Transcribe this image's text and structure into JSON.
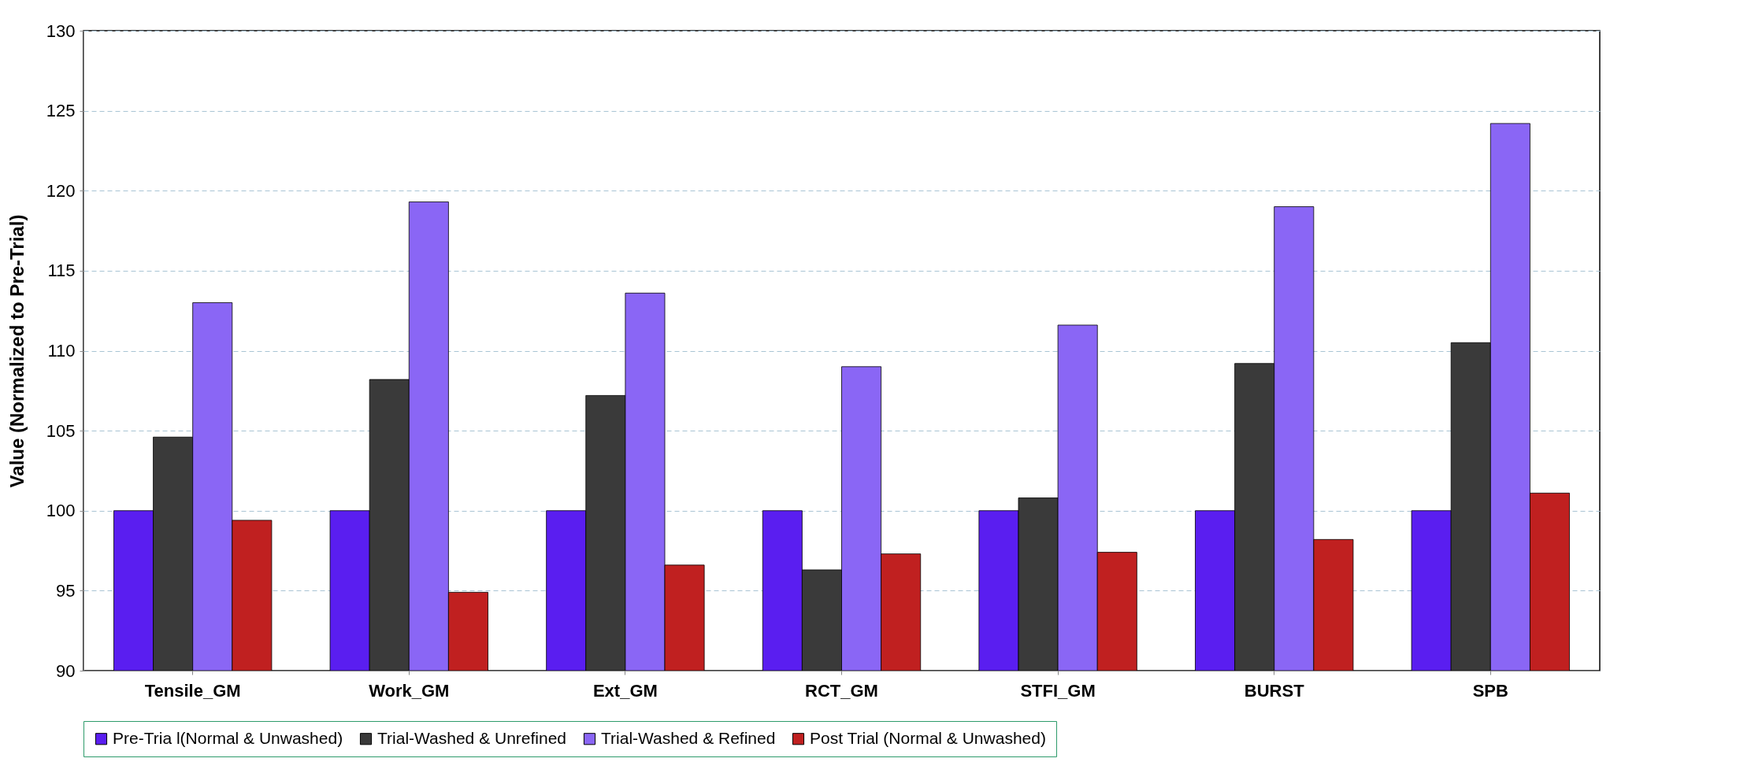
{
  "chart_data": {
    "type": "bar",
    "ylabel": "Value (Normalized to Pre-Trial)",
    "categories": [
      "Tensile_GM",
      "Work_GM",
      "Ext_GM",
      "RCT_GM",
      "STFI_GM",
      "BURST",
      "SPB"
    ],
    "series": [
      {
        "name": "Pre-Tria l(Normal & Unwashed)",
        "color": "#5a1ef0",
        "values": [
          100,
          100,
          100,
          100,
          100,
          100,
          100
        ]
      },
      {
        "name": "Trial-Washed & Unrefined",
        "color": "#3a3a3a",
        "values": [
          104.6,
          108.2,
          107.2,
          96.3,
          100.8,
          109.2,
          110.5
        ]
      },
      {
        "name": "Trial-Washed & Refined",
        "color": "#8a66f5",
        "values": [
          113,
          119.3,
          113.6,
          109,
          111.6,
          119,
          124.2
        ]
      },
      {
        "name": "Post Trial (Normal & Unwashed)",
        "color": "#c02020",
        "values": [
          99.4,
          94.9,
          96.6,
          97.3,
          97.4,
          98.2,
          101.1
        ]
      }
    ],
    "ylim": [
      90,
      130
    ],
    "yticks": [
      90,
      95,
      100,
      105,
      110,
      115,
      120,
      125,
      130
    ],
    "grid": "y",
    "legend": "bottom"
  }
}
